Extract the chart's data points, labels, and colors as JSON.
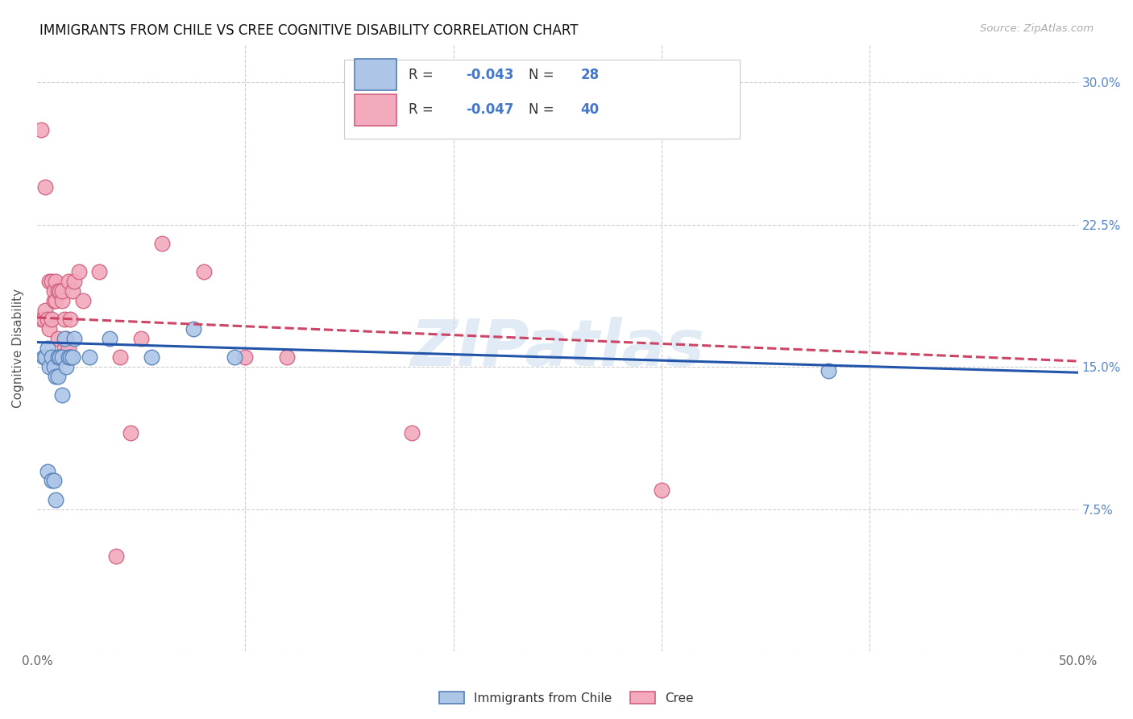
{
  "title": "IMMIGRANTS FROM CHILE VS CREE COGNITIVE DISABILITY CORRELATION CHART",
  "source": "Source: ZipAtlas.com",
  "ylabel": "Cognitive Disability",
  "xlim": [
    0.0,
    0.5
  ],
  "ylim": [
    0.0,
    0.32
  ],
  "xticks": [
    0.0,
    0.1,
    0.2,
    0.3,
    0.4,
    0.5
  ],
  "xticklabels": [
    "0.0%",
    "",
    "",
    "",
    "",
    "50.0%"
  ],
  "yticks": [
    0.0,
    0.075,
    0.15,
    0.225,
    0.3
  ],
  "yticklabels": [
    "",
    "7.5%",
    "15.0%",
    "22.5%",
    "30.0%"
  ],
  "watermark": "ZIPatlas",
  "chile_color": "#adc6e8",
  "cree_color": "#f2aabc",
  "chile_edge_color": "#5580b8",
  "cree_edge_color": "#d06080",
  "chile_line_color": "#2255aa",
  "cree_line_color": "#cc4466",
  "tick_label_color": "#5588cc",
  "grid_color": "#cccccc",
  "legend_text_color": "#333333",
  "legend_val_color": "#4477cc",
  "background": "#ffffff",
  "chile_x": [
    0.003,
    0.004,
    0.005,
    0.005,
    0.006,
    0.007,
    0.007,
    0.008,
    0.008,
    0.009,
    0.009,
    0.01,
    0.01,
    0.011,
    0.012,
    0.012,
    0.013,
    0.014,
    0.015,
    0.016,
    0.017,
    0.018,
    0.035,
    0.055,
    0.075,
    0.095,
    0.38,
    0.025
  ],
  "chile_y": [
    0.155,
    0.155,
    0.16,
    0.095,
    0.15,
    0.155,
    0.09,
    0.15,
    0.09,
    0.145,
    0.08,
    0.155,
    0.145,
    0.155,
    0.155,
    0.135,
    0.165,
    0.15,
    0.155,
    0.155,
    0.155,
    0.165,
    0.165,
    0.155,
    0.17,
    0.155,
    0.148,
    0.155
  ],
  "cree_x": [
    0.002,
    0.003,
    0.004,
    0.005,
    0.006,
    0.006,
    0.007,
    0.007,
    0.008,
    0.008,
    0.009,
    0.009,
    0.01,
    0.01,
    0.011,
    0.012,
    0.012,
    0.013,
    0.013,
    0.014,
    0.015,
    0.015,
    0.016,
    0.017,
    0.018,
    0.02,
    0.022,
    0.03,
    0.04,
    0.05,
    0.06,
    0.08,
    0.1,
    0.12,
    0.18,
    0.3,
    0.002,
    0.004,
    0.045,
    0.038
  ],
  "cree_y": [
    0.175,
    0.175,
    0.18,
    0.175,
    0.17,
    0.195,
    0.175,
    0.195,
    0.185,
    0.19,
    0.185,
    0.195,
    0.165,
    0.19,
    0.19,
    0.185,
    0.19,
    0.175,
    0.16,
    0.165,
    0.195,
    0.16,
    0.175,
    0.19,
    0.195,
    0.2,
    0.185,
    0.2,
    0.155,
    0.165,
    0.215,
    0.2,
    0.155,
    0.155,
    0.115,
    0.085,
    0.275,
    0.245,
    0.115,
    0.05
  ],
  "chile_line_x": [
    0.0,
    0.5
  ],
  "chile_line_y": [
    0.163,
    0.147
  ],
  "cree_line_x": [
    0.0,
    0.5
  ],
  "cree_line_y": [
    0.176,
    0.153
  ]
}
